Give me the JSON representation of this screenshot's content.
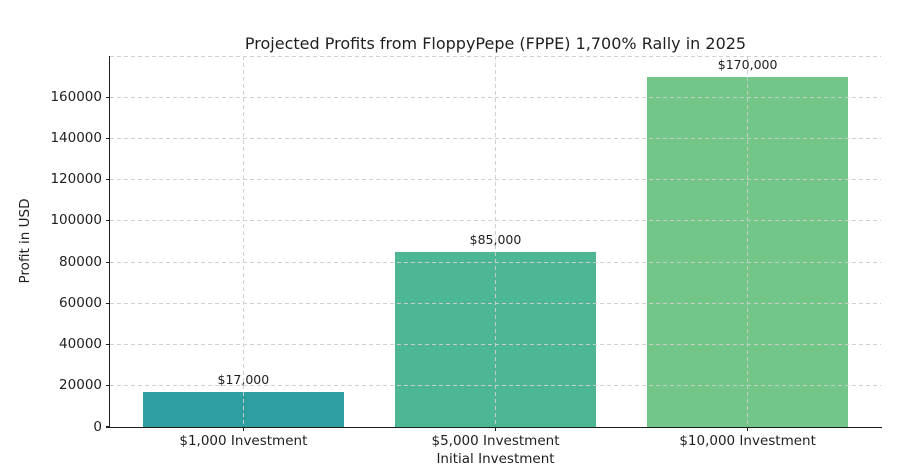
{
  "chart_data": {
    "type": "bar",
    "title": "Projected Profits from FloppyPepe (FPPE) 1,700% Rally in 2025",
    "xlabel": "Initial Investment",
    "ylabel": "Profit in USD",
    "categories": [
      "$1,000 Investment",
      "$5,000 Investment",
      "$10,000 Investment"
    ],
    "values": [
      17000,
      85000,
      170000
    ],
    "value_labels": [
      "$17,000",
      "$85,000",
      "$170,000"
    ],
    "bar_colors": [
      "#2f9ea0",
      "#4db694",
      "#72c687"
    ],
    "yticks": [
      0,
      20000,
      40000,
      60000,
      80000,
      100000,
      120000,
      140000,
      160000
    ],
    "ylim": [
      0,
      180000
    ],
    "grid": "dashed, drawn over bars, horizontal and vertical",
    "grid_color": "#cdcdcd",
    "axis_color": "#1f1f1f",
    "text_color": "#1f1f1f",
    "background_color": "#ffffff",
    "legend": "none"
  }
}
